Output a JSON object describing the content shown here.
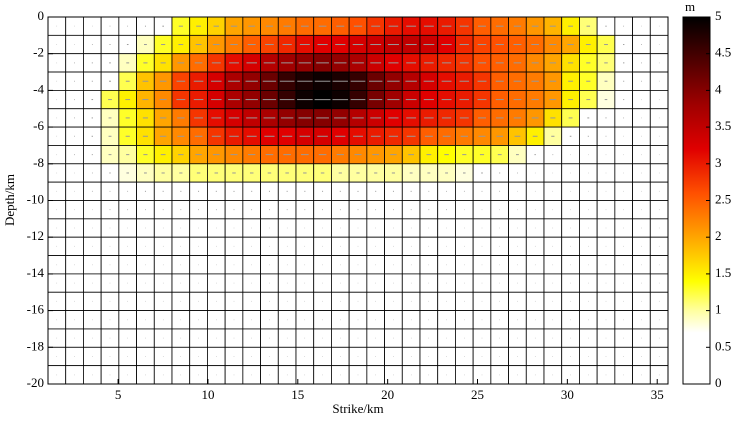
{
  "chart_data": {
    "type": "heatmap",
    "xlabel": "Strike/km",
    "ylabel": "Depth/km",
    "colorbar_label": "m",
    "xlim": [
      1.1,
      35.6
    ],
    "ylim": [
      -20,
      0
    ],
    "xticks": [
      5,
      10,
      15,
      20,
      25,
      30,
      35
    ],
    "yticks": [
      0,
      -2,
      -4,
      -6,
      -8,
      -10,
      -12,
      -14,
      -16,
      -18,
      -20
    ],
    "clim": [
      0,
      5
    ],
    "cticks": [
      0,
      0.5,
      1,
      1.5,
      2,
      2.5,
      3,
      3.5,
      4,
      4.5,
      5
    ],
    "colormap": [
      {
        "value": 0,
        "color": "#ffffff"
      },
      {
        "value": 0.7,
        "color": "#ffffff"
      },
      {
        "value": 1.0,
        "color": "#ffffa0"
      },
      {
        "value": 1.4,
        "color": "#ffff00"
      },
      {
        "value": 2.0,
        "color": "#ffa500"
      },
      {
        "value": 2.6,
        "color": "#ff5000"
      },
      {
        "value": 3.2,
        "color": "#e00000"
      },
      {
        "value": 3.8,
        "color": "#a00000"
      },
      {
        "value": 4.4,
        "color": "#500000"
      },
      {
        "value": 5,
        "color": "#000000"
      }
    ],
    "z": [
      [
        0.1,
        0.1,
        0.1,
        0.2,
        0.2,
        0.3,
        0.5,
        1.3,
        1.5,
        1.7,
        2.0,
        2.1,
        2.2,
        2.3,
        2.4,
        2.4,
        2.5,
        2.6,
        2.8,
        3.0,
        3.1,
        3.1,
        3.0,
        2.8,
        2.5,
        2.4,
        2.3,
        2.1,
        1.9,
        1.5,
        1.1,
        0.4,
        0.2,
        0.1,
        0.1
      ],
      [
        0.1,
        0.1,
        0.2,
        0.3,
        0.5,
        0.9,
        1.3,
        1.5,
        1.8,
        2.1,
        2.3,
        2.5,
        2.7,
        2.9,
        3.1,
        3.2,
        3.2,
        3.3,
        3.4,
        3.5,
        3.5,
        3.4,
        3.2,
        2.9,
        2.7,
        2.6,
        2.5,
        2.4,
        2.2,
        2.0,
        1.5,
        1.2,
        0.4,
        0.2,
        0.1
      ],
      [
        0.1,
        0.2,
        0.3,
        0.5,
        0.9,
        1.3,
        1.6,
        2.1,
        2.4,
        2.8,
        3.1,
        3.3,
        3.6,
        3.8,
        3.9,
        4.0,
        3.9,
        3.7,
        3.4,
        3.2,
        3.1,
        3.0,
        2.9,
        2.8,
        2.6,
        2.5,
        2.4,
        2.2,
        2.0,
        1.6,
        1.3,
        1.1,
        0.4,
        0.2,
        0.1
      ],
      [
        0.1,
        0.2,
        0.3,
        0.6,
        1.2,
        1.8,
        2.1,
        2.7,
        3.0,
        3.3,
        3.7,
        3.9,
        4.2,
        4.6,
        4.8,
        4.9,
        4.8,
        4.6,
        4.2,
        3.9,
        3.6,
        3.3,
        3.1,
        3.0,
        2.8,
        2.5,
        2.4,
        2.3,
        2.1,
        1.5,
        1.3,
        0.9,
        0.3,
        0.2,
        0.1
      ],
      [
        0.1,
        0.2,
        0.5,
        1.2,
        1.5,
        1.9,
        2.2,
        2.8,
        3.0,
        3.3,
        3.7,
        3.9,
        4.2,
        4.6,
        4.9,
        5.0,
        4.9,
        4.6,
        4.1,
        3.8,
        3.4,
        3.2,
        3.1,
        3.0,
        2.8,
        2.5,
        2.4,
        2.3,
        2.1,
        1.5,
        1.2,
        0.8,
        0.3,
        0.1,
        0.1
      ],
      [
        0.1,
        0.2,
        0.4,
        0.9,
        1.3,
        1.6,
        2.0,
        2.3,
        2.8,
        3.1,
        3.3,
        3.5,
        3.7,
        3.9,
        4.0,
        4.0,
        3.9,
        3.6,
        3.4,
        3.2,
        3.1,
        3.0,
        2.9,
        2.8,
        2.5,
        2.4,
        2.3,
        2.1,
        1.6,
        1.2,
        0.6,
        0.3,
        0.2,
        0.1,
        0.1
      ],
      [
        0.1,
        0.2,
        0.4,
        0.9,
        1.3,
        1.6,
        2.0,
        2.2,
        2.4,
        2.8,
        3.0,
        3.1,
        3.2,
        3.2,
        3.3,
        3.3,
        3.2,
        3.1,
        3.0,
        2.9,
        2.8,
        2.5,
        2.4,
        2.3,
        2.2,
        2.1,
        1.8,
        1.5,
        1.0,
        0.5,
        0.3,
        0.2,
        0.1,
        0.1,
        0.1
      ],
      [
        0.1,
        0.2,
        0.3,
        0.9,
        1.0,
        1.3,
        1.5,
        1.7,
        2.0,
        2.1,
        2.2,
        2.3,
        2.4,
        2.4,
        2.4,
        2.4,
        2.3,
        2.2,
        2.1,
        2.0,
        1.8,
        1.5,
        1.4,
        1.3,
        1.3,
        1.2,
        0.9,
        0.4,
        0.2,
        0.1,
        0.1,
        0.1,
        0.1,
        0.1,
        0.1
      ],
      [
        0.1,
        0.1,
        0.2,
        0.4,
        0.8,
        0.9,
        1.0,
        1.0,
        1.1,
        1.1,
        1.1,
        1.1,
        1.1,
        1.1,
        1.1,
        1.1,
        1.0,
        1.0,
        1.0,
        1.0,
        0.9,
        0.9,
        0.9,
        0.8,
        0.5,
        0.3,
        0.2,
        0.1,
        0.1,
        0.1,
        0.1,
        0.1,
        0.1,
        0.1,
        0.1
      ],
      [
        0.1,
        0.1,
        0.2,
        0.2,
        0.2,
        0.3,
        0.3,
        0.3,
        0.3,
        0.3,
        0.3,
        0.3,
        0.3,
        0.3,
        0.3,
        0.3,
        0.3,
        0.3,
        0.3,
        0.3,
        0.3,
        0.2,
        0.2,
        0.2,
        0.2,
        0.2,
        0.1,
        0.1,
        0.1,
        0.1,
        0.1,
        0.1,
        0.1,
        0.1,
        0.1
      ],
      [
        0.1,
        0.1,
        0.1,
        0.2,
        0.2,
        0.2,
        0.2,
        0.2,
        0.2,
        0.2,
        0.2,
        0.2,
        0.2,
        0.2,
        0.2,
        0.2,
        0.2,
        0.2,
        0.2,
        0.2,
        0.2,
        0.2,
        0.2,
        0.1,
        0.1,
        0.1,
        0.1,
        0.1,
        0.1,
        0.1,
        0.1,
        0.1,
        0.1,
        0.1,
        0.1
      ],
      [
        0.1,
        0.1,
        0.1,
        0.1,
        0.1,
        0.1,
        0.1,
        0.1,
        0.1,
        0.1,
        0.1,
        0.1,
        0.1,
        0.1,
        0.1,
        0.1,
        0.1,
        0.1,
        0.1,
        0.1,
        0.1,
        0.1,
        0.1,
        0.1,
        0.1,
        0.1,
        0.1,
        0.1,
        0.1,
        0.1,
        0.1,
        0.1,
        0.1,
        0.1,
        0.1
      ],
      [
        0.1,
        0.1,
        0.1,
        0.1,
        0.1,
        0.1,
        0.1,
        0.1,
        0.1,
        0.1,
        0.1,
        0.1,
        0.1,
        0.1,
        0.1,
        0.1,
        0.1,
        0.1,
        0.1,
        0.1,
        0.1,
        0.1,
        0.1,
        0.1,
        0.1,
        0.1,
        0.1,
        0.1,
        0.1,
        0.1,
        0.1,
        0.1,
        0.1,
        0.1,
        0.1
      ],
      [
        0.1,
        0.1,
        0.1,
        0.1,
        0.1,
        0.1,
        0.1,
        0.1,
        0.1,
        0.1,
        0.1,
        0.1,
        0.1,
        0.1,
        0.1,
        0.1,
        0.1,
        0.1,
        0.1,
        0.1,
        0.1,
        0.1,
        0.1,
        0.1,
        0.1,
        0.1,
        0.1,
        0.1,
        0.1,
        0.1,
        0.1,
        0.1,
        0.1,
        0.1,
        0.1
      ],
      [
        0.1,
        0.1,
        0.1,
        0.1,
        0.1,
        0.1,
        0.1,
        0.1,
        0.1,
        0.1,
        0.1,
        0.1,
        0.1,
        0.1,
        0.1,
        0.1,
        0.1,
        0.1,
        0.1,
        0.1,
        0.1,
        0.1,
        0.1,
        0.1,
        0.1,
        0.1,
        0.1,
        0.1,
        0.1,
        0.1,
        0.1,
        0.1,
        0.1,
        0.1,
        0.1
      ],
      [
        0.1,
        0.1,
        0.1,
        0.1,
        0.1,
        0.1,
        0.1,
        0.1,
        0.1,
        0.1,
        0.1,
        0.1,
        0.1,
        0.1,
        0.1,
        0.1,
        0.1,
        0.1,
        0.1,
        0.1,
        0.1,
        0.1,
        0.1,
        0.1,
        0.1,
        0.1,
        0.1,
        0.1,
        0.1,
        0.1,
        0.1,
        0.1,
        0.1,
        0.1,
        0.1
      ],
      [
        0.1,
        0.1,
        0.1,
        0.1,
        0.1,
        0.1,
        0.1,
        0.1,
        0.1,
        0.1,
        0.1,
        0.1,
        0.1,
        0.1,
        0.1,
        0.1,
        0.1,
        0.1,
        0.1,
        0.1,
        0.1,
        0.1,
        0.1,
        0.1,
        0.1,
        0.1,
        0.1,
        0.1,
        0.1,
        0.1,
        0.1,
        0.1,
        0.1,
        0.1,
        0.1
      ],
      [
        0.1,
        0.1,
        0.1,
        0.1,
        0.1,
        0.1,
        0.1,
        0.1,
        0.1,
        0.1,
        0.1,
        0.1,
        0.1,
        0.1,
        0.1,
        0.1,
        0.1,
        0.1,
        0.1,
        0.1,
        0.1,
        0.1,
        0.1,
        0.1,
        0.1,
        0.1,
        0.1,
        0.1,
        0.1,
        0.1,
        0.1,
        0.1,
        0.1,
        0.1,
        0.1
      ],
      [
        0.1,
        0.1,
        0.1,
        0.1,
        0.1,
        0.1,
        0.1,
        0.1,
        0.1,
        0.1,
        0.1,
        0.1,
        0.1,
        0.1,
        0.1,
        0.1,
        0.1,
        0.1,
        0.1,
        0.1,
        0.1,
        0.1,
        0.1,
        0.1,
        0.1,
        0.1,
        0.1,
        0.1,
        0.1,
        0.1,
        0.1,
        0.1,
        0.1,
        0.1,
        0.1
      ],
      [
        0.1,
        0.1,
        0.1,
        0.1,
        0.1,
        0.1,
        0.1,
        0.1,
        0.1,
        0.1,
        0.1,
        0.1,
        0.1,
        0.1,
        0.1,
        0.1,
        0.1,
        0.1,
        0.1,
        0.1,
        0.1,
        0.1,
        0.1,
        0.1,
        0.1,
        0.1,
        0.1,
        0.1,
        0.1,
        0.1,
        0.1,
        0.1,
        0.1,
        0.1,
        0.1
      ]
    ]
  }
}
